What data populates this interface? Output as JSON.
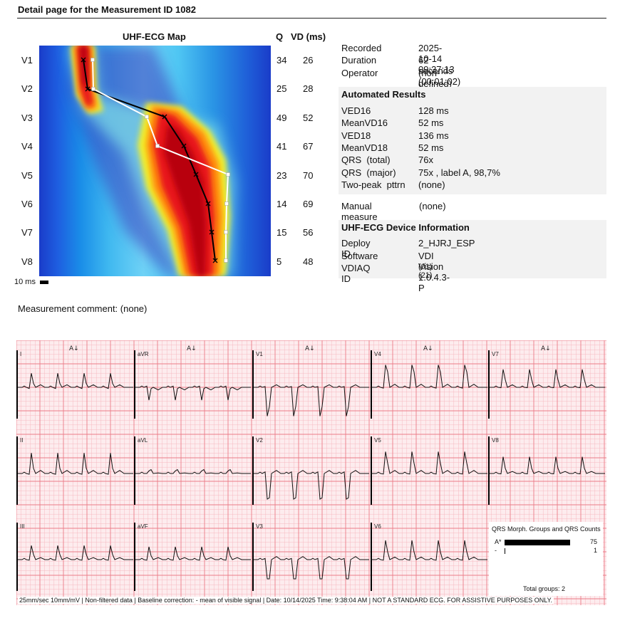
{
  "page": {
    "title": "Detail page for the Measurement ID 1082"
  },
  "map": {
    "title": "UHF-ECG Map",
    "q_header": "Q",
    "vd_header": "VD (ms)",
    "scale_label": "10 ms",
    "leads": [
      {
        "name": "V1",
        "q": "34",
        "vd": "26"
      },
      {
        "name": "V2",
        "q": "25",
        "vd": "28"
      },
      {
        "name": "V3",
        "q": "49",
        "vd": "52"
      },
      {
        "name": "V4",
        "q": "41",
        "vd": "67"
      },
      {
        "name": "V5",
        "q": "23",
        "vd": "70"
      },
      {
        "name": "V6",
        "q": "14",
        "vd": "69"
      },
      {
        "name": "V7",
        "q": "15",
        "vd": "56"
      },
      {
        "name": "V8",
        "q": "5",
        "vd": "48"
      }
    ]
  },
  "recording": {
    "recorded_label": "Recorded",
    "recorded_value": "2025-10-14 09:37:13",
    "duration_label": "Duration",
    "duration_value": "62 seconds (00:01:02)",
    "operator_label": "Operator",
    "operator_value": "(non-defined)"
  },
  "automated": {
    "title": "Automated Results",
    "rows": [
      {
        "key": "VED16",
        "value": "128 ms"
      },
      {
        "key": "MeanVD16",
        "value": "52 ms"
      },
      {
        "key": "VED18",
        "value": "136 ms"
      },
      {
        "key": "MeanVD18",
        "value": "52 ms"
      },
      {
        "key": "QRS  (total)",
        "value": "76x"
      },
      {
        "key": "QRS  (major)",
        "value": "75x , label A, 98,7%"
      },
      {
        "key": "Two-peak  pttrn",
        "value": "(none)"
      }
    ]
  },
  "manual": {
    "label": "Manual measure",
    "value": "(none)"
  },
  "device": {
    "title": "UHF-ECG Device Information",
    "deploy_label": "Deploy ID",
    "deploy_value": "2_HJRJ_ESP",
    "software_label": "Software",
    "software_value": "VDI Vision 1.0.4.3-P",
    "vdiaq_label": "VDIAQ ID",
    "vdiaq_value": "(01)(21)"
  },
  "comment": {
    "text": "Measurement comment: (none)"
  },
  "ecg": {
    "lead_labels": [
      [
        "I",
        "aVR",
        "V1",
        "V4",
        "V7"
      ],
      [
        "II",
        "aVL",
        "V2",
        "V5",
        "V8"
      ],
      [
        "III",
        "aVF",
        "V3",
        "V6"
      ]
    ],
    "beat_marker": "A↓",
    "footer": "25mm/sec   10mm/mV  |  Non-filtered data  |  Baseline correction: - mean of visible signal  |  Date: 10/14/2025  Time: 9:38:04 AM  |  NOT A STANDARD ECG. FOR ASSISTIVE PURPOSES ONLY.",
    "qrs_box": {
      "title": "QRS Morph. Groups and QRS Counts",
      "groups": [
        {
          "label": "A*",
          "count": "75",
          "fraction": 1.0
        },
        {
          "label": "-",
          "count": "1",
          "fraction": 0.013
        }
      ],
      "total": "Total groups: 2"
    }
  }
}
